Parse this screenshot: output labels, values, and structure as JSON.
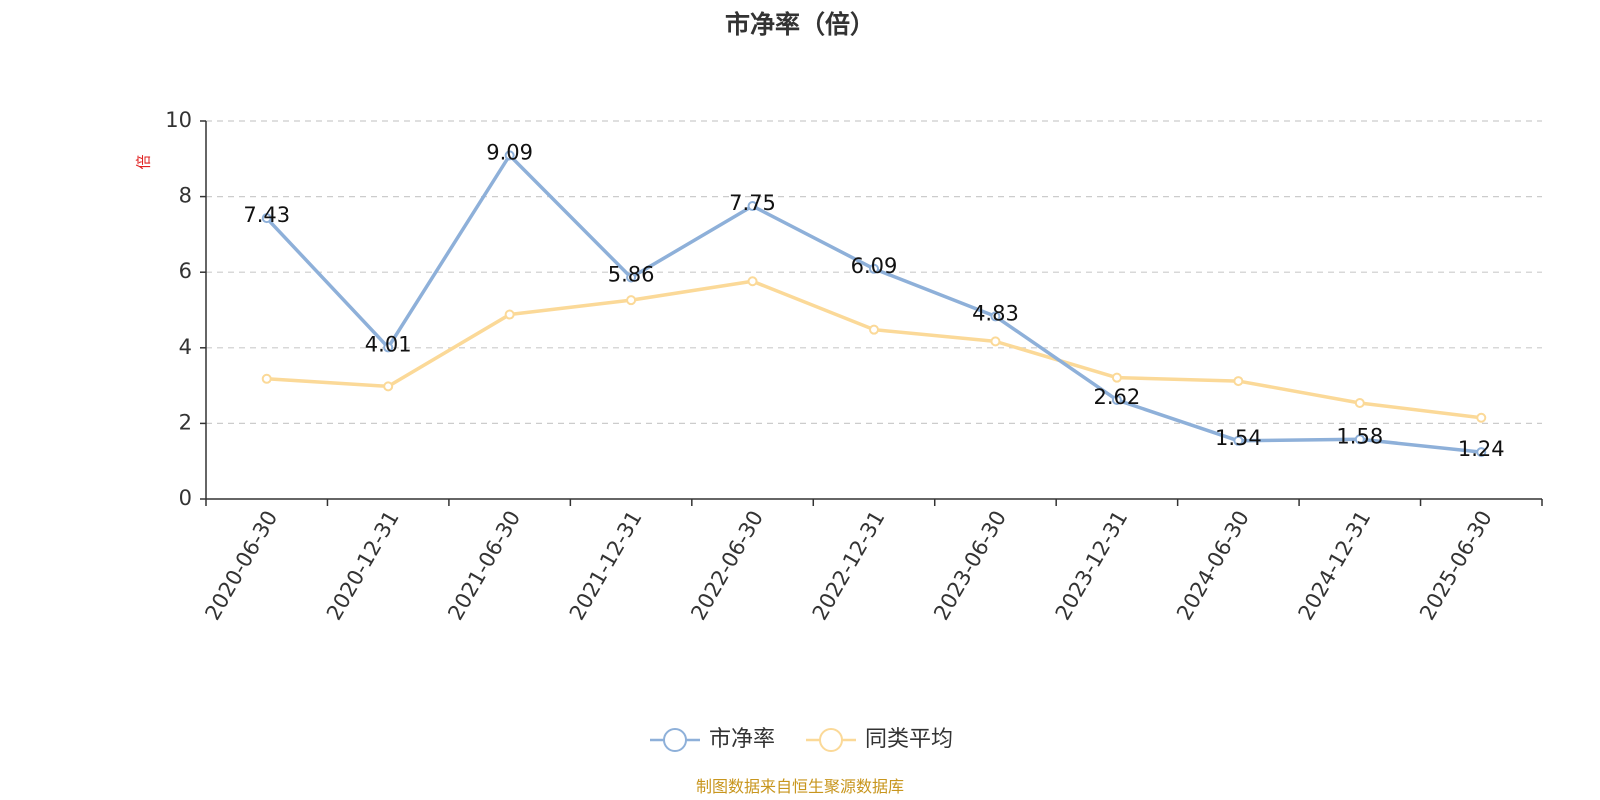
{
  "chart_data": {
    "type": "line",
    "title": "市净率（倍）",
    "ylabel": "倍",
    "ylim": [
      0,
      10
    ],
    "yticks": [
      0,
      2,
      4,
      6,
      8,
      10
    ],
    "grid": true,
    "legend_position": "bottom-center",
    "categories": [
      "2020-06-30",
      "2020-12-31",
      "2021-06-30",
      "2021-12-31",
      "2022-06-30",
      "2022-12-31",
      "2023-06-30",
      "2023-12-31",
      "2024-06-30",
      "2024-12-31",
      "2025-06-30"
    ],
    "series": [
      {
        "name": "市净率",
        "color": "#8eb0d9",
        "values": [
          7.43,
          4.01,
          9.09,
          5.86,
          7.75,
          6.09,
          4.83,
          2.62,
          1.54,
          1.58,
          1.24
        ],
        "show_labels": true
      },
      {
        "name": "同类平均",
        "color": "#fbd998",
        "values": [
          3.18,
          2.98,
          4.88,
          5.26,
          5.76,
          4.48,
          4.17,
          3.21,
          3.12,
          2.54,
          2.15
        ],
        "show_labels": false
      }
    ],
    "source": "制图数据来自恒生聚源数据库",
    "colors": {
      "unit": "#e02020",
      "source": "#c8961e",
      "axis": "#333333",
      "grid": "#cccccc"
    }
  }
}
